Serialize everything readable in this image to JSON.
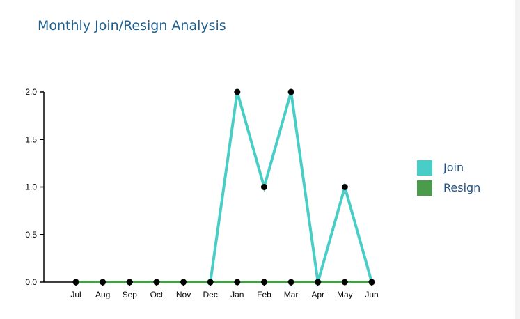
{
  "chart_data": {
    "type": "line",
    "title": "Monthly Join/Resign Analysis",
    "categories": [
      "Jul",
      "Aug",
      "Sep",
      "Oct",
      "Nov",
      "Dec",
      "Jan",
      "Feb",
      "Mar",
      "Apr",
      "May",
      "Jun"
    ],
    "series": [
      {
        "name": "Join",
        "color": "#48cec6",
        "values": [
          0,
          0,
          0,
          0,
          0,
          0,
          2,
          1,
          2,
          0,
          1,
          0
        ]
      },
      {
        "name": "Resign",
        "color": "#4a9c4c",
        "values": [
          0,
          0,
          0,
          0,
          0,
          0,
          0,
          0,
          0,
          0,
          0,
          0
        ]
      }
    ],
    "ylim": [
      0,
      2
    ],
    "yticks": [
      "0.0",
      "0.5",
      "1.0",
      "1.5",
      "2.0"
    ],
    "xlabel": "",
    "ylabel": "",
    "grid": false,
    "legend_position": "right",
    "marker_color": "#000000"
  }
}
